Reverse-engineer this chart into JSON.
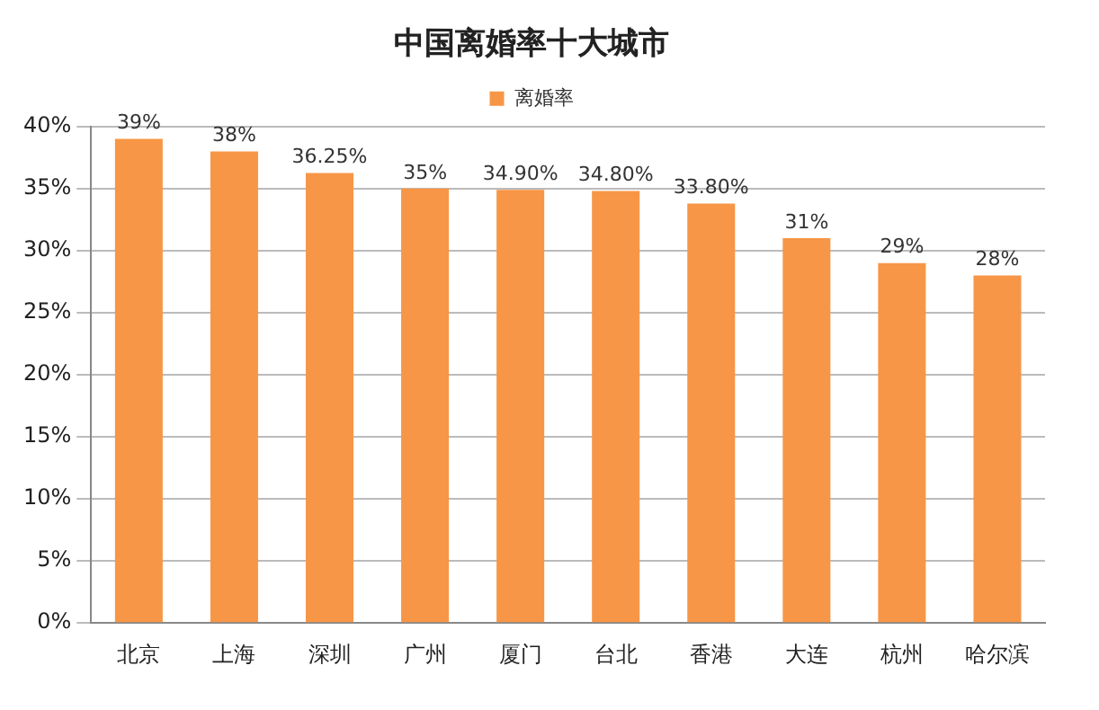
{
  "chart_data": {
    "type": "bar",
    "title": "中国离婚率十大城市",
    "categories": [
      "北京",
      "上海",
      "深圳",
      "广州",
      "厦门",
      "台北",
      "香港",
      "大连",
      "杭州",
      "哈尔滨"
    ],
    "series": [
      {
        "name": "离婚率",
        "color": "#f79646",
        "values": [
          39,
          38,
          36.25,
          35,
          34.9,
          34.8,
          33.8,
          31,
          29,
          28
        ],
        "value_labels": [
          "39%",
          "38%",
          "36.25%",
          "35%",
          "34.90%",
          "34.80%",
          "33.80%",
          "31%",
          "29%",
          "28%"
        ]
      }
    ],
    "ylim": [
      0,
      40
    ],
    "yticks": [
      {
        "value": 0,
        "label": "0%"
      },
      {
        "value": 5,
        "label": "5%"
      },
      {
        "value": 10,
        "label": "10%"
      },
      {
        "value": 15,
        "label": "15%"
      },
      {
        "value": 20,
        "label": "20%"
      },
      {
        "value": 25,
        "label": "25%"
      },
      {
        "value": 30,
        "label": "30%"
      },
      {
        "value": 35,
        "label": "35%"
      },
      {
        "value": 40,
        "label": "40%"
      }
    ],
    "grid": "y",
    "legend": "top"
  }
}
